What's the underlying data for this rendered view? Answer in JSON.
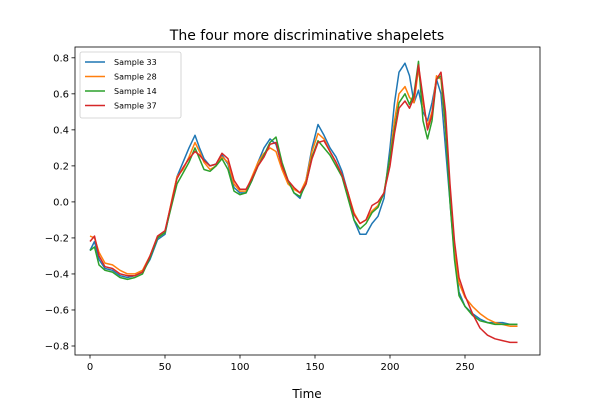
{
  "chart_data": {
    "type": "line",
    "title": "The four more discriminative shapelets",
    "xlabel": "Time",
    "ylabel": "",
    "xlim": [
      -10,
      300
    ],
    "ylim": [
      -0.85,
      0.86
    ],
    "xticks": [
      0,
      50,
      100,
      150,
      200,
      250
    ],
    "yticks": [
      -0.8,
      -0.6,
      -0.4,
      -0.2,
      0.0,
      0.2,
      0.4,
      0.6,
      0.8
    ],
    "ytick_labels": [
      "−0.8",
      "−0.6",
      "−0.4",
      "−0.2",
      "0.0",
      "0.2",
      "0.4",
      "0.6",
      "0.8"
    ],
    "legend_position": "top-left",
    "grid": false,
    "series": [
      {
        "name": "Sample 33",
        "color": "#1f77b4",
        "points": [
          [
            0,
            -0.27
          ],
          [
            3,
            -0.22
          ],
          [
            6,
            -0.32
          ],
          [
            10,
            -0.37
          ],
          [
            15,
            -0.38
          ],
          [
            20,
            -0.41
          ],
          [
            25,
            -0.42
          ],
          [
            30,
            -0.41
          ],
          [
            35,
            -0.39
          ],
          [
            40,
            -0.32
          ],
          [
            45,
            -0.21
          ],
          [
            50,
            -0.18
          ],
          [
            55,
            0.02
          ],
          [
            58,
            0.14
          ],
          [
            62,
            0.22
          ],
          [
            66,
            0.3
          ],
          [
            70,
            0.37
          ],
          [
            73,
            0.3
          ],
          [
            76,
            0.24
          ],
          [
            80,
            0.2
          ],
          [
            84,
            0.21
          ],
          [
            88,
            0.26
          ],
          [
            92,
            0.21
          ],
          [
            96,
            0.08
          ],
          [
            100,
            0.05
          ],
          [
            104,
            0.05
          ],
          [
            108,
            0.12
          ],
          [
            112,
            0.22
          ],
          [
            116,
            0.3
          ],
          [
            120,
            0.35
          ],
          [
            124,
            0.32
          ],
          [
            128,
            0.2
          ],
          [
            132,
            0.12
          ],
          [
            136,
            0.05
          ],
          [
            140,
            0.02
          ],
          [
            144,
            0.12
          ],
          [
            148,
            0.3
          ],
          [
            152,
            0.43
          ],
          [
            156,
            0.37
          ],
          [
            160,
            0.3
          ],
          [
            164,
            0.25
          ],
          [
            168,
            0.17
          ],
          [
            172,
            0.05
          ],
          [
            176,
            -0.1
          ],
          [
            180,
            -0.18
          ],
          [
            184,
            -0.18
          ],
          [
            188,
            -0.12
          ],
          [
            192,
            -0.08
          ],
          [
            196,
            0.02
          ],
          [
            200,
            0.3
          ],
          [
            203,
            0.55
          ],
          [
            206,
            0.72
          ],
          [
            210,
            0.77
          ],
          [
            213,
            0.7
          ],
          [
            216,
            0.55
          ],
          [
            219,
            0.62
          ],
          [
            222,
            0.5
          ],
          [
            225,
            0.45
          ],
          [
            228,
            0.55
          ],
          [
            231,
            0.68
          ],
          [
            234,
            0.6
          ],
          [
            237,
            0.3
          ],
          [
            240,
            0.0
          ],
          [
            243,
            -0.3
          ],
          [
            246,
            -0.5
          ],
          [
            250,
            -0.58
          ],
          [
            255,
            -0.62
          ],
          [
            260,
            -0.65
          ],
          [
            265,
            -0.67
          ],
          [
            270,
            -0.67
          ],
          [
            275,
            -0.67
          ],
          [
            280,
            -0.68
          ],
          [
            285,
            -0.68
          ]
        ]
      },
      {
        "name": "Sample 28",
        "color": "#ff7f0e",
        "points": [
          [
            0,
            -0.19
          ],
          [
            3,
            -0.2
          ],
          [
            6,
            -0.28
          ],
          [
            10,
            -0.34
          ],
          [
            15,
            -0.35
          ],
          [
            20,
            -0.38
          ],
          [
            25,
            -0.4
          ],
          [
            30,
            -0.4
          ],
          [
            35,
            -0.38
          ],
          [
            40,
            -0.3
          ],
          [
            45,
            -0.2
          ],
          [
            50,
            -0.17
          ],
          [
            55,
            0.03
          ],
          [
            58,
            0.14
          ],
          [
            62,
            0.18
          ],
          [
            66,
            0.25
          ],
          [
            70,
            0.33
          ],
          [
            73,
            0.28
          ],
          [
            76,
            0.22
          ],
          [
            80,
            0.18
          ],
          [
            84,
            0.2
          ],
          [
            88,
            0.25
          ],
          [
            92,
            0.22
          ],
          [
            96,
            0.1
          ],
          [
            100,
            0.06
          ],
          [
            104,
            0.06
          ],
          [
            108,
            0.14
          ],
          [
            112,
            0.22
          ],
          [
            116,
            0.27
          ],
          [
            120,
            0.3
          ],
          [
            124,
            0.28
          ],
          [
            128,
            0.18
          ],
          [
            132,
            0.1
          ],
          [
            136,
            0.07
          ],
          [
            140,
            0.05
          ],
          [
            144,
            0.12
          ],
          [
            148,
            0.28
          ],
          [
            152,
            0.38
          ],
          [
            156,
            0.35
          ],
          [
            160,
            0.28
          ],
          [
            164,
            0.22
          ],
          [
            168,
            0.15
          ],
          [
            172,
            0.05
          ],
          [
            176,
            -0.06
          ],
          [
            180,
            -0.12
          ],
          [
            184,
            -0.1
          ],
          [
            188,
            -0.05
          ],
          [
            192,
            -0.02
          ],
          [
            196,
            0.05
          ],
          [
            200,
            0.25
          ],
          [
            203,
            0.45
          ],
          [
            206,
            0.6
          ],
          [
            210,
            0.64
          ],
          [
            213,
            0.58
          ],
          [
            216,
            0.55
          ],
          [
            219,
            0.74
          ],
          [
            222,
            0.55
          ],
          [
            225,
            0.42
          ],
          [
            228,
            0.5
          ],
          [
            231,
            0.7
          ],
          [
            234,
            0.68
          ],
          [
            237,
            0.4
          ],
          [
            240,
            0.05
          ],
          [
            243,
            -0.28
          ],
          [
            246,
            -0.45
          ],
          [
            250,
            -0.53
          ],
          [
            255,
            -0.58
          ],
          [
            260,
            -0.62
          ],
          [
            265,
            -0.65
          ],
          [
            270,
            -0.67
          ],
          [
            275,
            -0.68
          ],
          [
            280,
            -0.69
          ],
          [
            285,
            -0.69
          ]
        ]
      },
      {
        "name": "Sample 14",
        "color": "#2ca02c",
        "points": [
          [
            0,
            -0.27
          ],
          [
            3,
            -0.25
          ],
          [
            6,
            -0.35
          ],
          [
            10,
            -0.38
          ],
          [
            15,
            -0.39
          ],
          [
            20,
            -0.42
          ],
          [
            25,
            -0.43
          ],
          [
            30,
            -0.42
          ],
          [
            35,
            -0.4
          ],
          [
            40,
            -0.31
          ],
          [
            45,
            -0.2
          ],
          [
            50,
            -0.17
          ],
          [
            55,
            0.0
          ],
          [
            58,
            0.1
          ],
          [
            62,
            0.16
          ],
          [
            66,
            0.22
          ],
          [
            70,
            0.3
          ],
          [
            73,
            0.24
          ],
          [
            76,
            0.18
          ],
          [
            80,
            0.17
          ],
          [
            84,
            0.2
          ],
          [
            88,
            0.24
          ],
          [
            92,
            0.18
          ],
          [
            96,
            0.06
          ],
          [
            100,
            0.04
          ],
          [
            104,
            0.05
          ],
          [
            108,
            0.12
          ],
          [
            112,
            0.2
          ],
          [
            116,
            0.26
          ],
          [
            120,
            0.33
          ],
          [
            124,
            0.36
          ],
          [
            128,
            0.22
          ],
          [
            132,
            0.12
          ],
          [
            136,
            0.05
          ],
          [
            140,
            0.03
          ],
          [
            144,
            0.1
          ],
          [
            148,
            0.25
          ],
          [
            152,
            0.34
          ],
          [
            156,
            0.3
          ],
          [
            160,
            0.26
          ],
          [
            164,
            0.2
          ],
          [
            168,
            0.14
          ],
          [
            172,
            0.02
          ],
          [
            176,
            -0.1
          ],
          [
            180,
            -0.15
          ],
          [
            184,
            -0.12
          ],
          [
            188,
            -0.06
          ],
          [
            192,
            -0.03
          ],
          [
            196,
            0.05
          ],
          [
            200,
            0.25
          ],
          [
            203,
            0.4
          ],
          [
            206,
            0.55
          ],
          [
            210,
            0.6
          ],
          [
            213,
            0.54
          ],
          [
            216,
            0.6
          ],
          [
            219,
            0.78
          ],
          [
            222,
            0.45
          ],
          [
            225,
            0.35
          ],
          [
            228,
            0.45
          ],
          [
            231,
            0.68
          ],
          [
            234,
            0.7
          ],
          [
            237,
            0.42
          ],
          [
            240,
            0.0
          ],
          [
            243,
            -0.32
          ],
          [
            246,
            -0.52
          ],
          [
            250,
            -0.58
          ],
          [
            255,
            -0.63
          ],
          [
            260,
            -0.66
          ],
          [
            265,
            -0.67
          ],
          [
            270,
            -0.68
          ],
          [
            275,
            -0.68
          ],
          [
            280,
            -0.68
          ],
          [
            285,
            -0.68
          ]
        ]
      },
      {
        "name": "Sample 37",
        "color": "#d62728",
        "points": [
          [
            0,
            -0.22
          ],
          [
            3,
            -0.19
          ],
          [
            6,
            -0.3
          ],
          [
            10,
            -0.36
          ],
          [
            15,
            -0.37
          ],
          [
            20,
            -0.4
          ],
          [
            25,
            -0.41
          ],
          [
            30,
            -0.41
          ],
          [
            35,
            -0.39
          ],
          [
            40,
            -0.3
          ],
          [
            45,
            -0.19
          ],
          [
            50,
            -0.16
          ],
          [
            55,
            0.02
          ],
          [
            58,
            0.13
          ],
          [
            62,
            0.19
          ],
          [
            66,
            0.24
          ],
          [
            70,
            0.28
          ],
          [
            73,
            0.26
          ],
          [
            76,
            0.23
          ],
          [
            80,
            0.2
          ],
          [
            84,
            0.21
          ],
          [
            88,
            0.27
          ],
          [
            92,
            0.24
          ],
          [
            96,
            0.12
          ],
          [
            100,
            0.07
          ],
          [
            104,
            0.07
          ],
          [
            108,
            0.13
          ],
          [
            112,
            0.2
          ],
          [
            116,
            0.25
          ],
          [
            120,
            0.32
          ],
          [
            124,
            0.33
          ],
          [
            128,
            0.2
          ],
          [
            132,
            0.12
          ],
          [
            136,
            0.08
          ],
          [
            140,
            0.05
          ],
          [
            144,
            0.1
          ],
          [
            148,
            0.24
          ],
          [
            152,
            0.33
          ],
          [
            156,
            0.34
          ],
          [
            160,
            0.28
          ],
          [
            164,
            0.22
          ],
          [
            168,
            0.15
          ],
          [
            172,
            0.05
          ],
          [
            176,
            -0.07
          ],
          [
            180,
            -0.12
          ],
          [
            184,
            -0.1
          ],
          [
            188,
            -0.02
          ],
          [
            192,
            0.0
          ],
          [
            196,
            0.05
          ],
          [
            200,
            0.2
          ],
          [
            203,
            0.38
          ],
          [
            206,
            0.52
          ],
          [
            210,
            0.56
          ],
          [
            213,
            0.52
          ],
          [
            216,
            0.58
          ],
          [
            219,
            0.76
          ],
          [
            222,
            0.58
          ],
          [
            225,
            0.4
          ],
          [
            228,
            0.48
          ],
          [
            231,
            0.68
          ],
          [
            234,
            0.72
          ],
          [
            237,
            0.5
          ],
          [
            240,
            0.1
          ],
          [
            243,
            -0.22
          ],
          [
            246,
            -0.42
          ],
          [
            250,
            -0.52
          ],
          [
            255,
            -0.62
          ],
          [
            260,
            -0.7
          ],
          [
            265,
            -0.74
          ],
          [
            270,
            -0.76
          ],
          [
            275,
            -0.77
          ],
          [
            280,
            -0.78
          ],
          [
            285,
            -0.78
          ]
        ]
      }
    ]
  }
}
